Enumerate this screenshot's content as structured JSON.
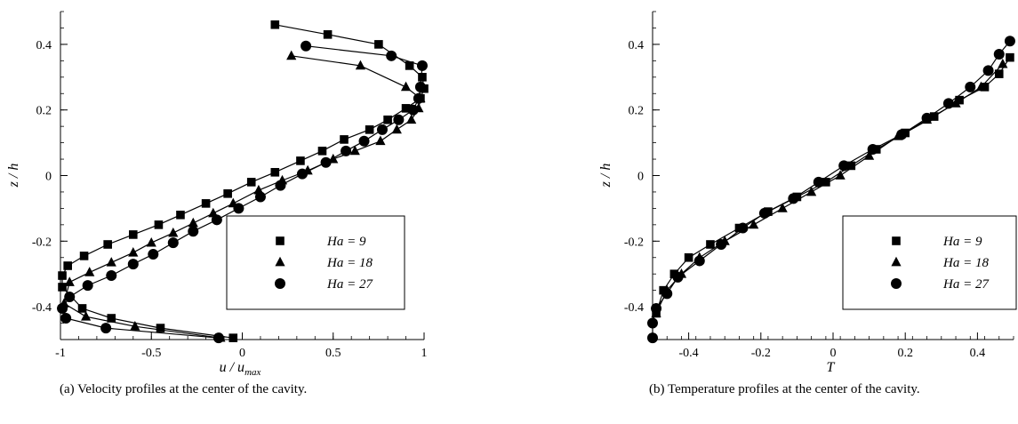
{
  "chart_data": [
    {
      "type": "scatter",
      "caption": "(a) Velocity profiles at the center of the cavity.",
      "xlabel": "u / u",
      "xlabel_sub": "max",
      "ylabel": "z / h",
      "xlim": [
        -1,
        1
      ],
      "ylim": [
        -0.5,
        0.5
      ],
      "xticks": [
        -1,
        -0.5,
        0,
        0.5,
        1
      ],
      "xtick_labels": [
        "-1",
        "-0.5",
        "0",
        "0.5",
        "1"
      ],
      "yticks": [
        -0.4,
        -0.2,
        0,
        0.2,
        0.4
      ],
      "ytick_labels": [
        "-0.4",
        "-0.2",
        "0",
        "0.2",
        "0.4"
      ],
      "grid": false,
      "legend_position": "bottom-right",
      "series": [
        {
          "name": "Ha = 9",
          "marker": "square",
          "x": [
            -0.05,
            -0.45,
            -0.72,
            -0.88,
            -0.99,
            -0.99,
            -0.96,
            -0.87,
            -0.74,
            -0.6,
            -0.46,
            -0.34,
            -0.2,
            -0.08,
            0.05,
            0.18,
            0.32,
            0.44,
            0.56,
            0.7,
            0.8,
            0.9,
            0.98,
            1.0,
            0.99,
            0.92,
            0.75,
            0.47,
            0.18
          ],
          "y": [
            -0.495,
            -0.465,
            -0.435,
            -0.405,
            -0.34,
            -0.305,
            -0.275,
            -0.245,
            -0.21,
            -0.18,
            -0.15,
            -0.12,
            -0.085,
            -0.055,
            -0.02,
            0.01,
            0.045,
            0.075,
            0.11,
            0.14,
            0.17,
            0.205,
            0.235,
            0.265,
            0.3,
            0.335,
            0.4,
            0.43,
            0.46
          ]
        },
        {
          "name": "Ha = 18",
          "marker": "triangle",
          "x": [
            -0.12,
            -0.59,
            -0.86,
            -0.98,
            -0.95,
            -0.84,
            -0.72,
            -0.6,
            -0.5,
            -0.38,
            -0.27,
            -0.16,
            -0.05,
            0.09,
            0.22,
            0.36,
            0.5,
            0.62,
            0.76,
            0.85,
            0.93,
            0.97,
            0.98,
            0.9,
            0.65,
            0.27
          ],
          "y": [
            -0.495,
            -0.46,
            -0.43,
            -0.39,
            -0.325,
            -0.295,
            -0.265,
            -0.235,
            -0.205,
            -0.175,
            -0.145,
            -0.115,
            -0.085,
            -0.045,
            -0.015,
            0.015,
            0.05,
            0.075,
            0.105,
            0.14,
            0.17,
            0.205,
            0.235,
            0.27,
            0.335,
            0.365
          ]
        },
        {
          "name": "Ha = 27",
          "marker": "circle",
          "x": [
            -0.13,
            -0.75,
            -0.97,
            -0.99,
            -0.95,
            -0.85,
            -0.72,
            -0.6,
            -0.49,
            -0.38,
            -0.27,
            -0.14,
            -0.02,
            0.1,
            0.21,
            0.33,
            0.46,
            0.57,
            0.67,
            0.77,
            0.86,
            0.94,
            0.97,
            0.98,
            0.99,
            0.82,
            0.35
          ],
          "y": [
            -0.495,
            -0.465,
            -0.435,
            -0.405,
            -0.37,
            -0.335,
            -0.305,
            -0.27,
            -0.24,
            -0.205,
            -0.17,
            -0.135,
            -0.1,
            -0.065,
            -0.03,
            0.005,
            0.04,
            0.075,
            0.105,
            0.14,
            0.17,
            0.2,
            0.235,
            0.27,
            0.335,
            0.365,
            0.395
          ]
        }
      ]
    },
    {
      "type": "scatter",
      "caption": "(b) Temperature profiles at the center of the cavity.",
      "xlabel": "T",
      "ylabel": "z / h",
      "xlim": [
        -0.5,
        0.5
      ],
      "ylim": [
        -0.5,
        0.5
      ],
      "xticks": [
        -0.4,
        -0.2,
        0,
        0.2,
        0.4
      ],
      "xtick_labels": [
        "-0.4",
        "-0.2",
        "0",
        "0.2",
        "0.4"
      ],
      "yticks": [
        -0.4,
        -0.2,
        0,
        0.2,
        0.4
      ],
      "ytick_labels": [
        "-0.4",
        "-0.2",
        "0",
        "0.2",
        "0.4"
      ],
      "grid": false,
      "legend_position": "bottom-right",
      "series": [
        {
          "name": "Ha = 9",
          "marker": "square",
          "x": [
            -0.49,
            -0.47,
            -0.44,
            -0.4,
            -0.34,
            -0.26,
            -0.18,
            -0.1,
            -0.02,
            0.05,
            0.12,
            0.2,
            0.28,
            0.35,
            0.42,
            0.46,
            0.49
          ],
          "y": [
            -0.42,
            -0.35,
            -0.3,
            -0.25,
            -0.21,
            -0.16,
            -0.11,
            -0.065,
            -0.02,
            0.03,
            0.08,
            0.13,
            0.18,
            0.23,
            0.27,
            0.31,
            0.36
          ]
        },
        {
          "name": "Ha = 18",
          "marker": "triangle",
          "x": [
            -0.49,
            -0.46,
            -0.42,
            -0.37,
            -0.3,
            -0.22,
            -0.14,
            -0.06,
            0.02,
            0.1,
            0.18,
            0.26,
            0.34,
            0.41,
            0.47
          ],
          "y": [
            -0.42,
            -0.35,
            -0.3,
            -0.25,
            -0.2,
            -0.15,
            -0.1,
            -0.05,
            0.0,
            0.06,
            0.12,
            0.17,
            0.22,
            0.27,
            0.34
          ]
        },
        {
          "name": "Ha = 27",
          "marker": "circle",
          "x": [
            -0.5,
            -0.5,
            -0.49,
            -0.46,
            -0.43,
            -0.37,
            -0.31,
            -0.25,
            -0.19,
            -0.11,
            -0.04,
            0.03,
            0.11,
            0.19,
            0.26,
            0.32,
            0.38,
            0.43,
            0.46,
            0.49
          ],
          "y": [
            -0.495,
            -0.45,
            -0.405,
            -0.36,
            -0.31,
            -0.26,
            -0.21,
            -0.16,
            -0.115,
            -0.07,
            -0.02,
            0.03,
            0.08,
            0.125,
            0.175,
            0.22,
            0.27,
            0.32,
            0.37,
            0.41
          ]
        }
      ]
    }
  ]
}
